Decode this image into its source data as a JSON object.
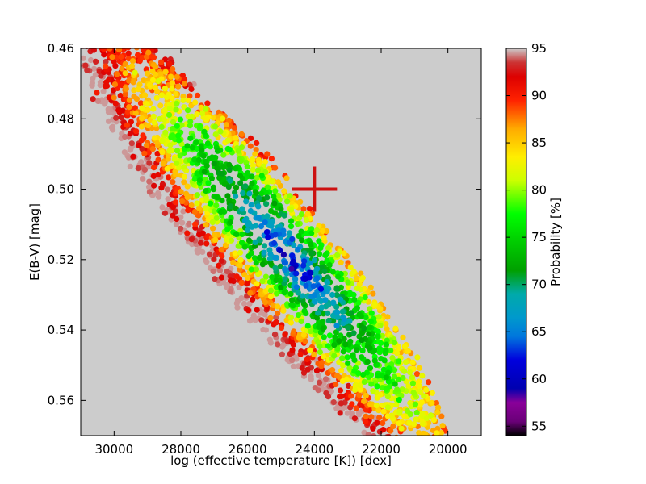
{
  "chart_data": {
    "type": "scatter",
    "title": "",
    "xlabel": "log (effective temperature [K]) [dex]",
    "ylabel": "E(B-V) [mag]",
    "xlim": [
      31000,
      19000
    ],
    "ylim": [
      0.57,
      0.46
    ],
    "x_inverted": true,
    "y_inverted": true,
    "x_ticks": [
      {
        "value": 30000,
        "label": "30000"
      },
      {
        "value": 28000,
        "label": "28000"
      },
      {
        "value": 26000,
        "label": "26000"
      },
      {
        "value": 24000,
        "label": "24000"
      },
      {
        "value": 22000,
        "label": "22000"
      },
      {
        "value": 20000,
        "label": "20000"
      }
    ],
    "y_ticks": [
      {
        "value": 0.46,
        "label": "0.46"
      },
      {
        "value": 0.48,
        "label": "0.48"
      },
      {
        "value": 0.5,
        "label": "0.50"
      },
      {
        "value": 0.52,
        "label": "0.52"
      },
      {
        "value": 0.54,
        "label": "0.54"
      },
      {
        "value": 0.56,
        "label": "0.56"
      }
    ],
    "grid": false,
    "background_color": "#cccccc",
    "colormap": "nipy_spectral",
    "colorbar": {
      "label": "Probability [%]",
      "range": [
        54,
        95
      ],
      "ticks": [
        {
          "value": 55,
          "label": "55"
        },
        {
          "value": 60,
          "label": "60"
        },
        {
          "value": 65,
          "label": "65"
        },
        {
          "value": 70,
          "label": "70"
        },
        {
          "value": 75,
          "label": "75"
        },
        {
          "value": 80,
          "label": "80"
        },
        {
          "value": 85,
          "label": "85"
        },
        {
          "value": 90,
          "label": "90"
        },
        {
          "value": 95,
          "label": "95"
        }
      ],
      "stops": [
        {
          "value": 54,
          "color": "#000000"
        },
        {
          "value": 55.5,
          "color": "#6a0078"
        },
        {
          "value": 57.5,
          "color": "#8a0099"
        },
        {
          "value": 59,
          "color": "#0000b0"
        },
        {
          "value": 62,
          "color": "#0000dd"
        },
        {
          "value": 64.5,
          "color": "#0077dd"
        },
        {
          "value": 66.5,
          "color": "#0099cc"
        },
        {
          "value": 69,
          "color": "#00aaaa"
        },
        {
          "value": 71.5,
          "color": "#00a000"
        },
        {
          "value": 74.5,
          "color": "#00cc00"
        },
        {
          "value": 77.5,
          "color": "#00ff00"
        },
        {
          "value": 81,
          "color": "#ccff00"
        },
        {
          "value": 83.5,
          "color": "#ffee00"
        },
        {
          "value": 86.5,
          "color": "#ffaa00"
        },
        {
          "value": 89.5,
          "color": "#ff2200"
        },
        {
          "value": 92,
          "color": "#dd0000"
        },
        {
          "value": 93.5,
          "color": "#cc3333"
        },
        {
          "value": 95,
          "color": "#cccccc"
        }
      ]
    },
    "best_fit_marker": {
      "x": 24000,
      "y": 0.5,
      "marker": "cross",
      "color": "#cc1111"
    },
    "point_cloud": {
      "count": 2600,
      "seed": 7,
      "center": {
        "x": 25500,
        "y": 0.516
      },
      "extent_x": 5600,
      "extent_y": 0.046,
      "slope_dy_per_dx": -1.05e-05,
      "probability_peak": 59,
      "probability_edge": 95
    }
  }
}
